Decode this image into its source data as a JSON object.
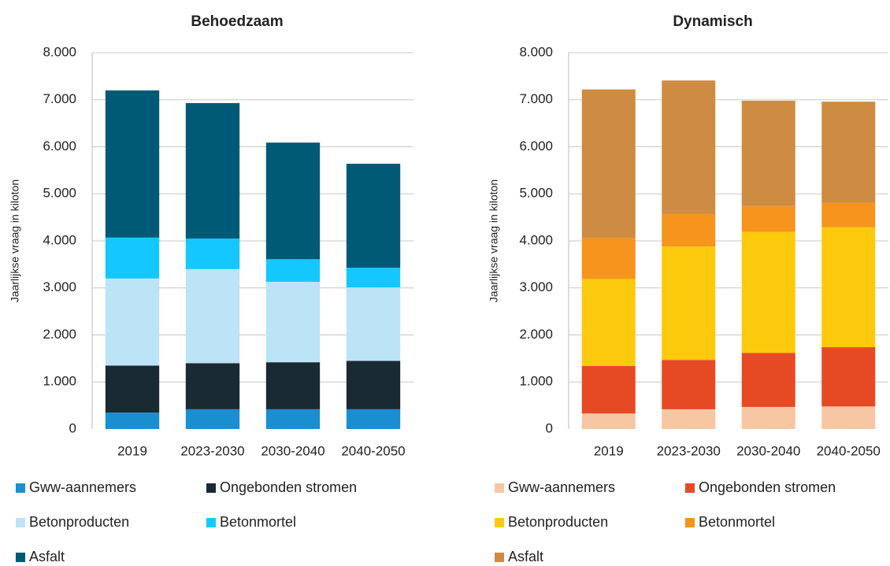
{
  "chart_data": [
    {
      "type": "stacked_bar",
      "title": "Behoedzaam",
      "ylabel": "Jaarlijkse vraag in kiloton",
      "categories": [
        "2019",
        "2023-2030",
        "2030-2040",
        "2040-2050"
      ],
      "series": [
        {
          "name": "Gww-aannemers",
          "color": "#1a8fd0",
          "values": [
            350,
            420,
            420,
            420
          ]
        },
        {
          "name": "Ongebonden stromen",
          "color": "#1a2a33",
          "values": [
            1000,
            980,
            1000,
            1030
          ]
        },
        {
          "name": "Betonproducten",
          "color": "#bde3f7",
          "values": [
            1850,
            2000,
            1710,
            1560
          ]
        },
        {
          "name": "Betonmortel",
          "color": "#14c8ff",
          "values": [
            870,
            650,
            480,
            420
          ]
        },
        {
          "name": "Asfalt",
          "color": "#005a76",
          "values": [
            3130,
            2880,
            2480,
            2210
          ]
        }
      ],
      "ylim": [
        0,
        8000
      ],
      "yticks": [
        0,
        {
          "value": 1000,
          "label": "1.000"
        },
        {
          "value": 2000,
          "label": "2.000"
        },
        {
          "value": 3000,
          "label": "3.000"
        },
        {
          "value": 4000,
          "label": "4.000"
        },
        {
          "value": 5000,
          "label": "5.000"
        },
        {
          "value": 6000,
          "label": "6.000"
        },
        {
          "value": 7000,
          "label": "7.000"
        },
        {
          "value": 8000,
          "label": "8.000"
        }
      ],
      "grid": true
    },
    {
      "type": "stacked_bar",
      "title": "Dynamisch",
      "ylabel": "Jaarlijkse vraag in kiloton",
      "categories": [
        "2019",
        "2023-2030",
        "2030-2040",
        "2040-2050"
      ],
      "series": [
        {
          "name": "Gww-aannemers",
          "color": "#f7c6a3",
          "values": [
            330,
            420,
            470,
            480
          ]
        },
        {
          "name": "Ongebonden stromen",
          "color": "#e64a25",
          "values": [
            1010,
            1050,
            1150,
            1260
          ]
        },
        {
          "name": "Betonproducten",
          "color": "#fdc90c",
          "values": [
            1850,
            2410,
            2570,
            2550
          ]
        },
        {
          "name": "Betonmortel",
          "color": "#f7941d",
          "values": [
            870,
            690,
            550,
            520
          ]
        },
        {
          "name": "Asfalt",
          "color": "#cd8c41",
          "values": [
            3160,
            2840,
            2240,
            2150
          ]
        }
      ],
      "ylim": [
        0,
        8000
      ],
      "yticks": [
        0,
        {
          "value": 1000,
          "label": "1.000"
        },
        {
          "value": 2000,
          "label": "2.000"
        },
        {
          "value": 3000,
          "label": "3.000"
        },
        {
          "value": 4000,
          "label": "4.000"
        },
        {
          "value": 5000,
          "label": "5.000"
        },
        {
          "value": 6000,
          "label": "6.000"
        },
        {
          "value": 7000,
          "label": "7.000"
        },
        {
          "value": 8000,
          "label": "8.000"
        }
      ],
      "grid": true
    }
  ]
}
